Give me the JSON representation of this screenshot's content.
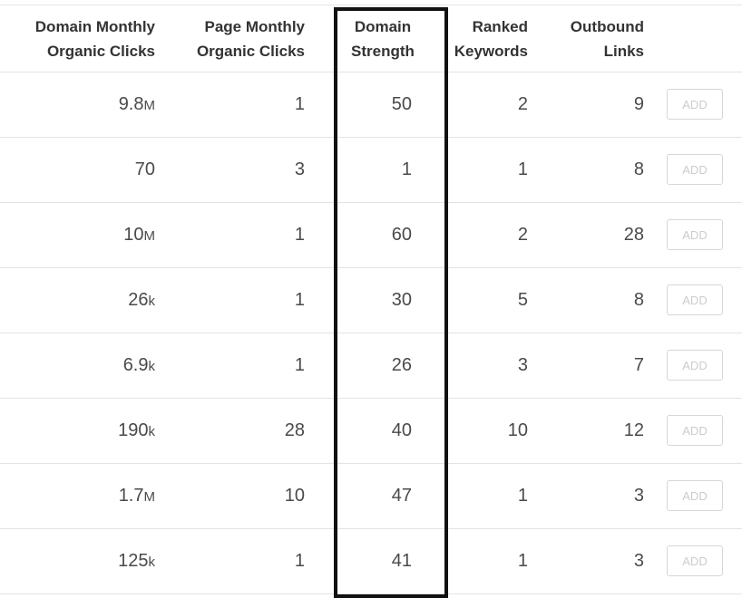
{
  "columns": {
    "domain_clicks": [
      "Domain Monthly",
      "Organic Clicks"
    ],
    "page_clicks": [
      "Page Monthly",
      "Organic Clicks"
    ],
    "domain_strength": [
      "Domain",
      "Strength"
    ],
    "ranked_keywords": [
      "Ranked",
      "Keywords"
    ],
    "outbound_links": [
      "Outbound",
      "Links"
    ]
  },
  "add_label": "ADD",
  "rows": [
    {
      "domain_clicks": "9.8",
      "domain_clicks_unit": "M",
      "page_clicks": "1",
      "domain_strength": "50",
      "ranked_keywords": "2",
      "outbound_links": "9"
    },
    {
      "domain_clicks": "70",
      "domain_clicks_unit": "",
      "page_clicks": "3",
      "domain_strength": "1",
      "ranked_keywords": "1",
      "outbound_links": "8"
    },
    {
      "domain_clicks": "10",
      "domain_clicks_unit": "M",
      "page_clicks": "1",
      "domain_strength": "60",
      "ranked_keywords": "2",
      "outbound_links": "28"
    },
    {
      "domain_clicks": "26",
      "domain_clicks_unit": "k",
      "page_clicks": "1",
      "domain_strength": "30",
      "ranked_keywords": "5",
      "outbound_links": "8"
    },
    {
      "domain_clicks": "6.9",
      "domain_clicks_unit": "k",
      "page_clicks": "1",
      "domain_strength": "26",
      "ranked_keywords": "3",
      "outbound_links": "7"
    },
    {
      "domain_clicks": "190",
      "domain_clicks_unit": "k",
      "page_clicks": "28",
      "domain_strength": "40",
      "ranked_keywords": "10",
      "outbound_links": "12"
    },
    {
      "domain_clicks": "1.7",
      "domain_clicks_unit": "M",
      "page_clicks": "10",
      "domain_strength": "47",
      "ranked_keywords": "1",
      "outbound_links": "3"
    },
    {
      "domain_clicks": "125",
      "domain_clicks_unit": "k",
      "page_clicks": "1",
      "domain_strength": "41",
      "ranked_keywords": "1",
      "outbound_links": "3"
    }
  ]
}
